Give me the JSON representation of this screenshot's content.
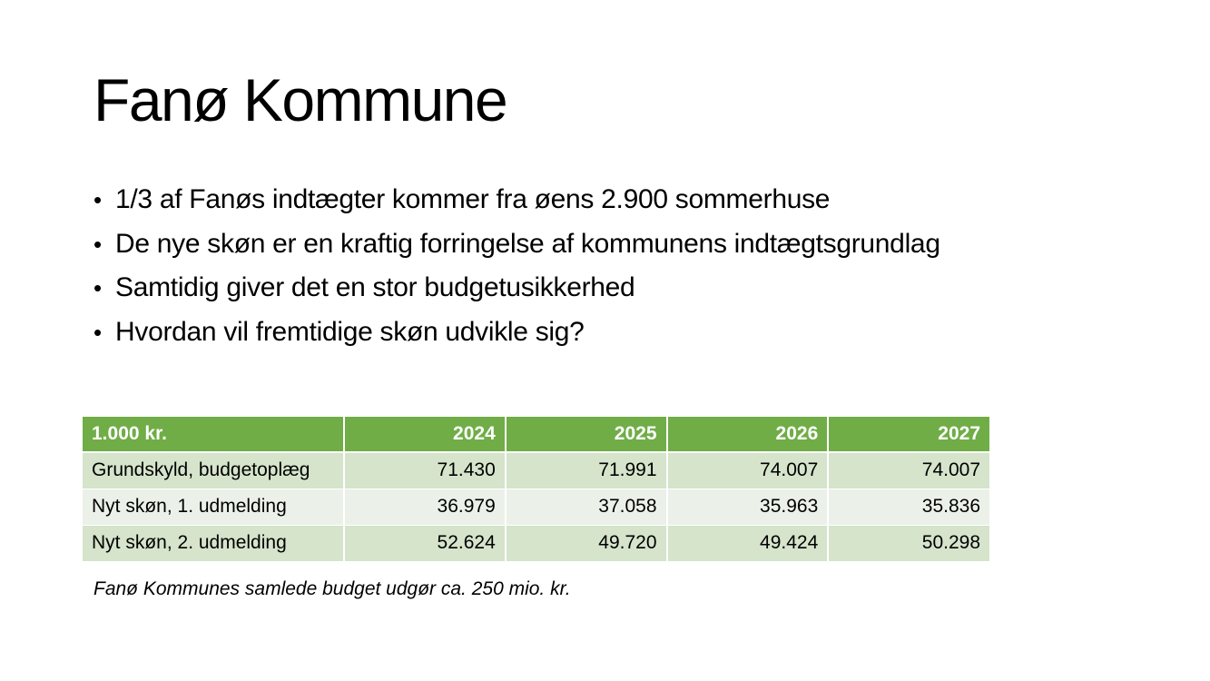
{
  "slide": {
    "title": "Fanø Kommune",
    "bullets": [
      "1/3 af Fanøs indtægter kommer fra øens 2.900 sommerhuse",
      "De nye skøn er en kraftig forringelse af kommunens indtægtsgrundlag",
      "Samtidig giver det en stor budgetusikkerhed",
      "Hvordan vil fremtidige skøn udvikle sig?"
    ],
    "table": {
      "header": [
        "1.000 kr.",
        "2024",
        "2025",
        "2026",
        "2027"
      ],
      "rows": [
        [
          "Grundskyld, budgetoplæg",
          "71.430",
          "71.991",
          "74.007",
          "74.007"
        ],
        [
          "Nyt skøn, 1. udmelding",
          "36.979",
          "37.058",
          "35.963",
          "35.836"
        ],
        [
          "Nyt skøn, 2. udmelding",
          "52.624",
          "49.720",
          "49.424",
          "50.298"
        ]
      ]
    },
    "note": "Fanø Kommunes samlede budget udgør ca. 250 mio. kr.",
    "colors": {
      "header_bg": "#70ad47",
      "row_odd_bg": "#d5e4cb",
      "row_even_bg": "#ebf1e8"
    }
  }
}
